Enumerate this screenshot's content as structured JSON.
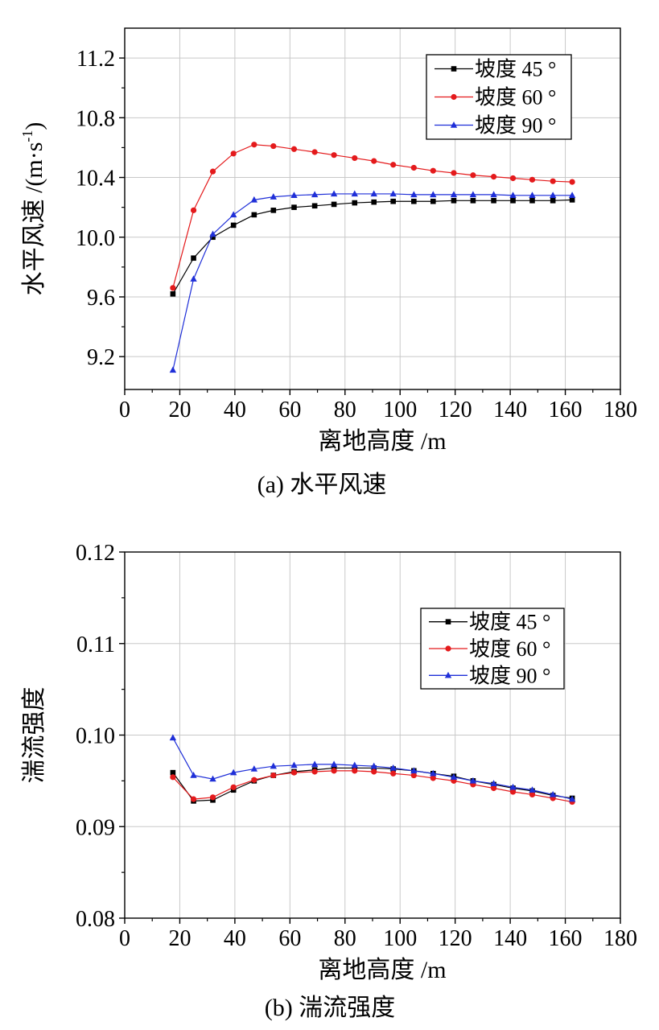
{
  "chart_data": [
    {
      "type": "line",
      "caption": "(a)  水平风速",
      "xlabel": "离地高度 /m",
      "ylabel_main": "水平风速 /(m·s",
      "ylabel_sup": "-1",
      "ylabel_end": ")",
      "xlim": [
        0,
        180
      ],
      "ylim": [
        8.98,
        11.4
      ],
      "xticks": [
        0,
        20,
        40,
        60,
        80,
        100,
        120,
        140,
        160,
        180
      ],
      "xtick_labels": [
        "0",
        "20",
        "40",
        "60",
        "80",
        "100",
        "120",
        "140",
        "160",
        "180"
      ],
      "yticks": [
        9.2,
        9.6,
        10.0,
        10.4,
        10.8,
        11.2
      ],
      "ytick_labels": [
        "9.2",
        "9.6",
        "10.0",
        "10.4",
        "10.8",
        "11.2"
      ],
      "legend_position": "top-right",
      "grid": true,
      "x": [
        17.5,
        25,
        32,
        39.5,
        47,
        54,
        61.5,
        69,
        76,
        83.5,
        90.5,
        97.5,
        105,
        112,
        119.5,
        126.5,
        134,
        141,
        148,
        155.5,
        162.5
      ],
      "series": [
        {
          "name": "坡度 45 °",
          "color": "#000000",
          "marker": "square",
          "values": [
            9.62,
            9.86,
            10.0,
            10.08,
            10.15,
            10.18,
            10.2,
            10.21,
            10.22,
            10.23,
            10.235,
            10.24,
            10.24,
            10.24,
            10.245,
            10.245,
            10.245,
            10.245,
            10.245,
            10.245,
            10.25
          ]
        },
        {
          "name": "坡度 60 °",
          "color": "#e41a1c",
          "marker": "circle",
          "values": [
            9.66,
            10.18,
            10.44,
            10.56,
            10.62,
            10.61,
            10.59,
            10.57,
            10.55,
            10.53,
            10.51,
            10.485,
            10.465,
            10.445,
            10.43,
            10.415,
            10.405,
            10.395,
            10.385,
            10.375,
            10.37
          ]
        },
        {
          "name": "坡度 90 °",
          "color": "#1f2fd8",
          "marker": "triangle",
          "values": [
            9.11,
            9.72,
            10.02,
            10.15,
            10.25,
            10.27,
            10.28,
            10.285,
            10.29,
            10.29,
            10.29,
            10.29,
            10.285,
            10.285,
            10.285,
            10.285,
            10.285,
            10.28,
            10.28,
            10.28,
            10.28
          ]
        }
      ]
    },
    {
      "type": "line",
      "caption": "(b)  湍流强度",
      "xlabel": "离地高度 /m",
      "ylabel_main": "湍流强度",
      "ylabel_sup": "",
      "ylabel_end": "",
      "xlim": [
        0,
        180
      ],
      "ylim": [
        0.08,
        0.12
      ],
      "xticks": [
        0,
        20,
        40,
        60,
        80,
        100,
        120,
        140,
        160,
        180
      ],
      "xtick_labels": [
        "0",
        "20",
        "40",
        "60",
        "80",
        "100",
        "120",
        "140",
        "160",
        "180"
      ],
      "yticks": [
        0.08,
        0.09,
        0.1,
        0.11,
        0.12
      ],
      "ytick_labels": [
        "0.08",
        "0.09",
        "0.10",
        "0.11",
        "0.12"
      ],
      "legend_position": "right",
      "grid": true,
      "x": [
        17.5,
        25,
        32,
        39.5,
        47,
        54,
        61.5,
        69,
        76,
        83.5,
        90.5,
        97.5,
        105,
        112,
        119.5,
        126.5,
        134,
        141,
        148,
        155.5,
        162.5
      ],
      "series": [
        {
          "name": "坡度 45 °",
          "color": "#000000",
          "marker": "square",
          "values": [
            0.0959,
            0.0928,
            0.0929,
            0.094,
            0.095,
            0.0956,
            0.096,
            0.0962,
            0.0964,
            0.0964,
            0.0964,
            0.0963,
            0.0961,
            0.0958,
            0.0955,
            0.095,
            0.0946,
            0.0942,
            0.0939,
            0.0934,
            0.0931
          ]
        },
        {
          "name": "坡度 60 °",
          "color": "#e41a1c",
          "marker": "circle",
          "values": [
            0.0954,
            0.093,
            0.0932,
            0.0943,
            0.0951,
            0.0956,
            0.0959,
            0.096,
            0.0961,
            0.0961,
            0.096,
            0.0958,
            0.0956,
            0.0953,
            0.095,
            0.0946,
            0.0942,
            0.0938,
            0.0935,
            0.0931,
            0.0927
          ]
        },
        {
          "name": "坡度 90 °",
          "color": "#1f2fd8",
          "marker": "triangle",
          "values": [
            0.0997,
            0.0956,
            0.0952,
            0.0959,
            0.0963,
            0.0966,
            0.0967,
            0.0968,
            0.0968,
            0.0967,
            0.0966,
            0.0964,
            0.0961,
            0.0958,
            0.0954,
            0.095,
            0.0947,
            0.0943,
            0.094,
            0.0935,
            0.093
          ]
        }
      ]
    }
  ]
}
